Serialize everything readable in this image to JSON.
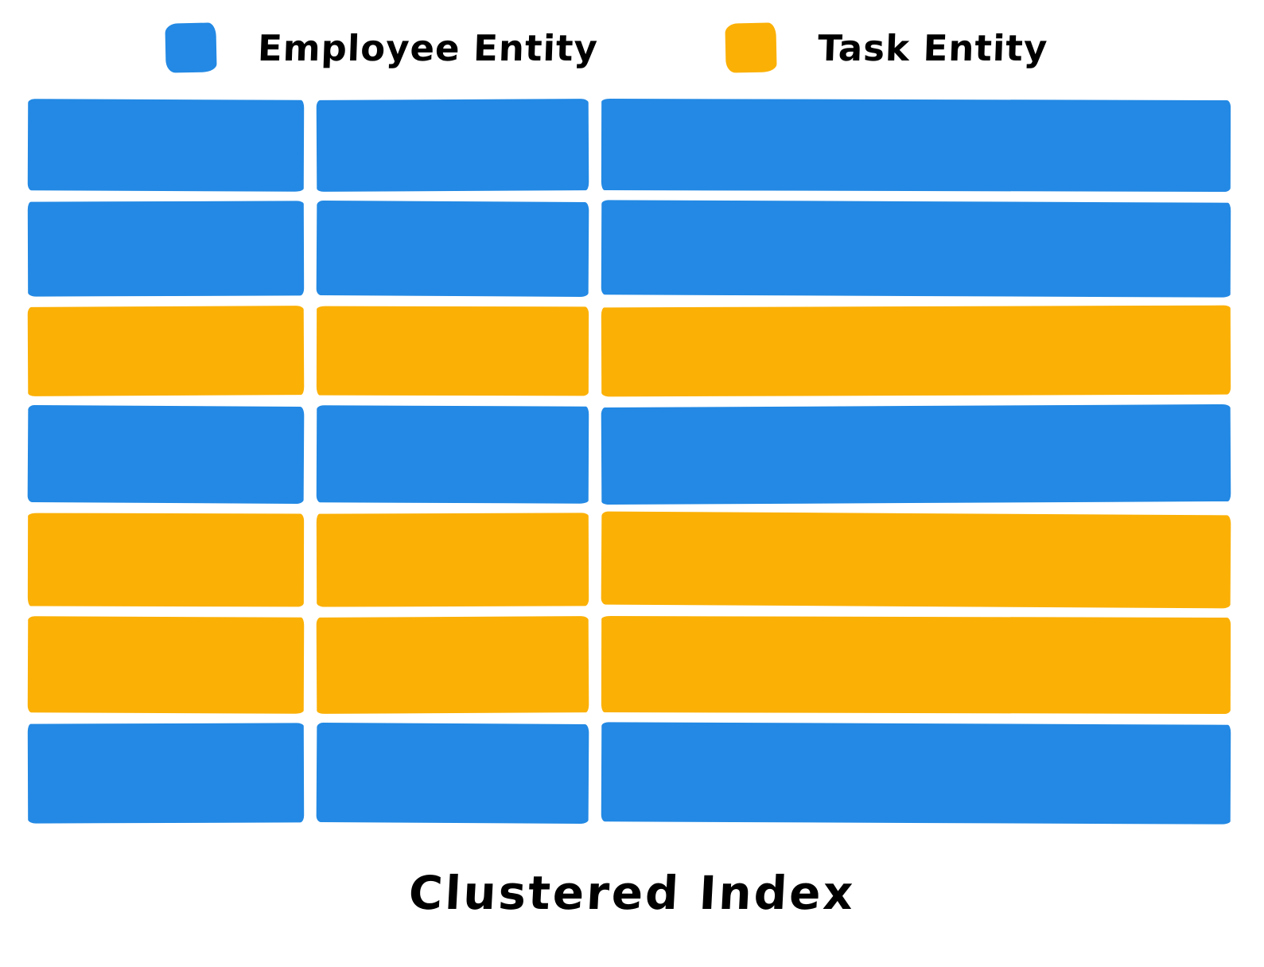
{
  "legend": {
    "items": [
      {
        "key": "employee",
        "label": "Employee Entity",
        "color": "#2389e4",
        "swatch_icon": "blue-square-swatch"
      },
      {
        "key": "task",
        "label": "Task Entity",
        "color": "#fbb005",
        "swatch_icon": "orange-square-swatch"
      }
    ]
  },
  "grid": {
    "columns": 3,
    "rows": 7,
    "row_sequence": [
      "employee",
      "employee",
      "task",
      "employee",
      "task",
      "task",
      "employee"
    ]
  },
  "caption": "Clustered Index",
  "colors": {
    "employee_blue": "#2389e4",
    "task_orange": "#fbb005",
    "background": "#ffffff",
    "text": "#000000"
  }
}
